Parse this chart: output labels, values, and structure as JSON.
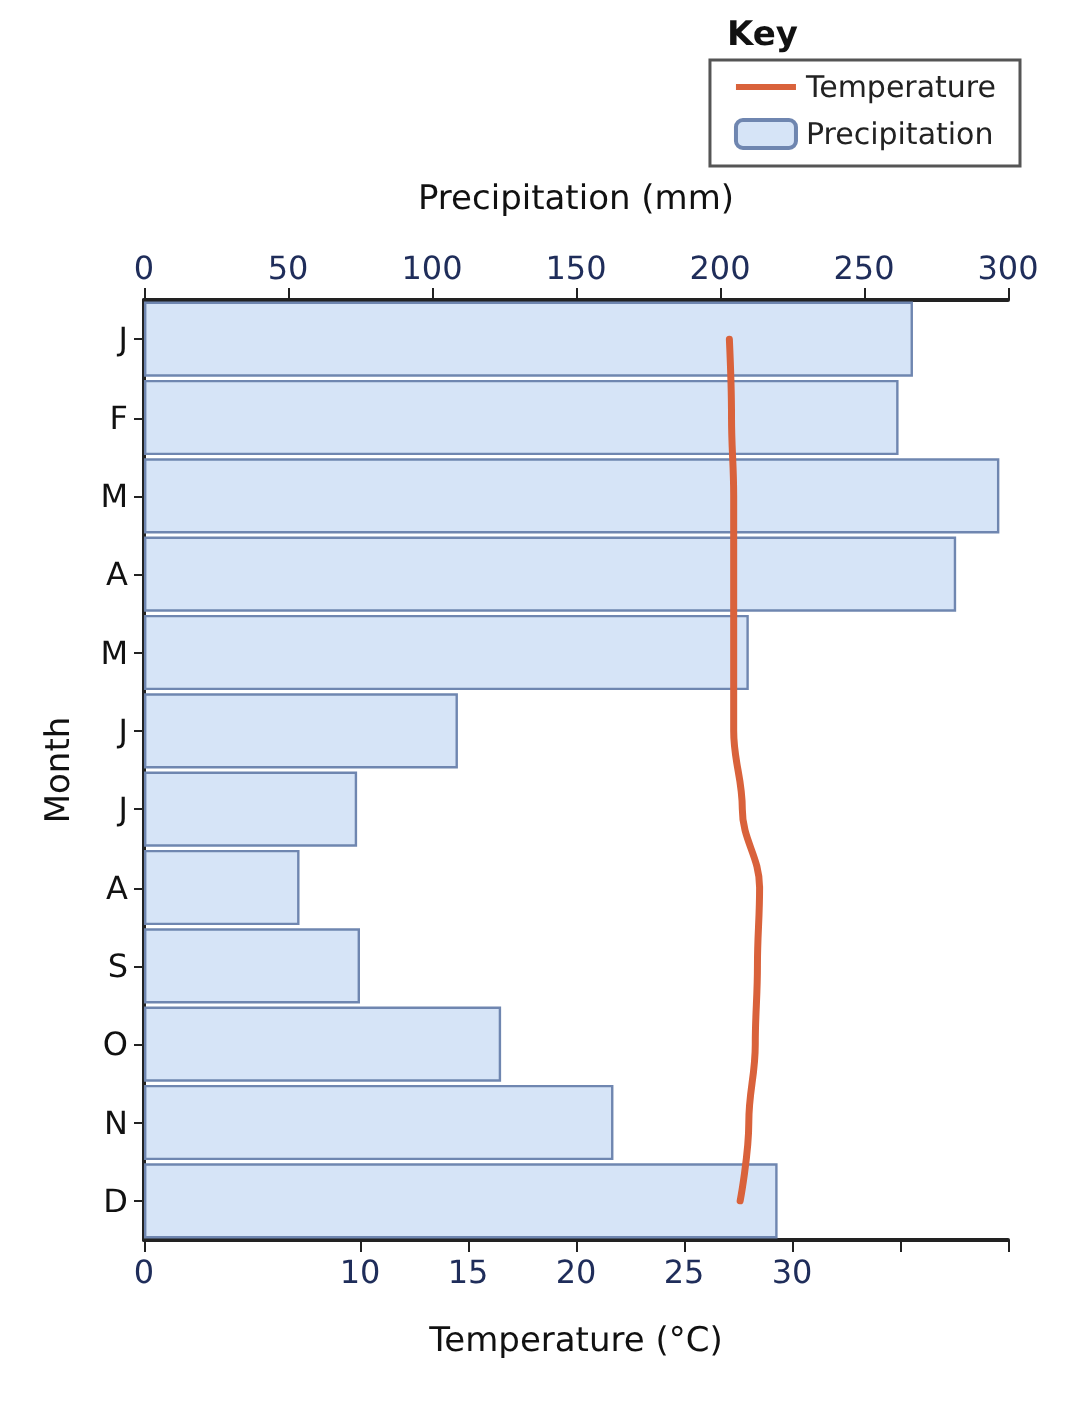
{
  "chart_data": {
    "type": "bar",
    "orientation": "horizontal",
    "categories": [
      "J",
      "F",
      "M",
      "A",
      "M",
      "J",
      "J",
      "A",
      "S",
      "O",
      "N",
      "D"
    ],
    "xlabel": "Temperature (°C)",
    "x2label": "Precipitation (mm)",
    "ylabel": "Month",
    "xlim": [
      0,
      40
    ],
    "xticks": [
      0,
      10,
      15,
      20,
      25,
      30,
      {
        "value": 35,
        "label": null
      },
      {
        "value": 40,
        "label": null
      }
    ],
    "x2lim": [
      0,
      300
    ],
    "x2ticks": [
      0,
      50,
      100,
      150,
      200,
      250,
      300
    ],
    "legend_title": "Key",
    "legend": "top right",
    "grid": false,
    "marker": "none",
    "series": [
      {
        "name": "Temperature",
        "type": "line",
        "color": "#d9623b",
        "values": [
          27.1,
          27.2,
          27.3,
          27.3,
          27.3,
          27.3,
          27.7,
          28.5,
          28.4,
          28.3,
          28.0,
          27.6
        ]
      },
      {
        "name": "Precipitation",
        "type": "bar",
        "axis": "x2",
        "color": "#d6e4f7",
        "values": [
          267,
          262,
          297,
          282,
          210,
          109,
          74,
          54,
          75,
          124,
          163,
          220
        ]
      }
    ]
  }
}
